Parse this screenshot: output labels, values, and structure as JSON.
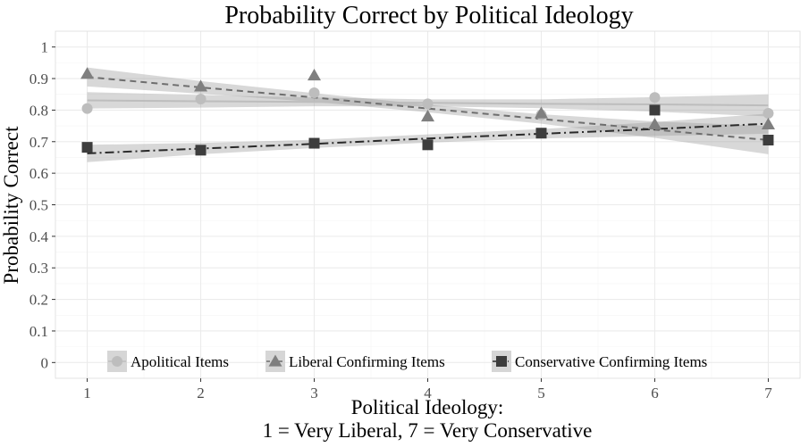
{
  "chart_data": {
    "type": "scatter",
    "title": "Probability Correct by Political Ideology",
    "xlabel_line1": "Political Ideology:",
    "xlabel_line2": "1 = Very Liberal, 7 = Very Conservative",
    "ylabel": "Probability Correct",
    "xlim": [
      0.72,
      7.28
    ],
    "ylim": [
      -0.05,
      1.05
    ],
    "x_ticks": [
      1,
      2,
      3,
      4,
      5,
      6,
      7
    ],
    "y_ticks": [
      0,
      0.1,
      0.2,
      0.3,
      0.4,
      0.5,
      0.6,
      0.7,
      0.8,
      0.9,
      1
    ],
    "y_tick_labels": [
      "0",
      "0.1",
      "0.2",
      "0.3",
      "0.4",
      "0.5",
      "0.6",
      "0.7",
      "0.8",
      "0.9",
      "1"
    ],
    "grid": true,
    "legend_position": "bottom-inside",
    "series": [
      {
        "name": "Apolitical Items",
        "marker": "circle",
        "color": "#bdbdbd",
        "line_color": "#bdbdbd",
        "line_style": "solid",
        "x": [
          1,
          2,
          3,
          4,
          5,
          6,
          7
        ],
        "points": [
          0.805,
          0.835,
          0.855,
          0.82,
          0.785,
          0.84,
          0.79
        ],
        "fit": [
          0.831,
          0.828,
          0.826,
          0.823,
          0.82,
          0.818,
          0.815
        ],
        "ci_lower": [
          0.805,
          0.808,
          0.812,
          0.812,
          0.806,
          0.795,
          0.78
        ],
        "ci_upper": [
          0.857,
          0.848,
          0.84,
          0.834,
          0.834,
          0.841,
          0.85
        ]
      },
      {
        "name": "Liberal Confirming Items",
        "marker": "triangle",
        "color": "#7f7f7f",
        "line_color": "#6e6e6e",
        "line_style": "dashed",
        "x": [
          1,
          2,
          3,
          4,
          5,
          6,
          7
        ],
        "points": [
          0.915,
          0.875,
          0.91,
          0.78,
          0.79,
          0.755,
          0.755
        ],
        "fit": [
          0.905,
          0.872,
          0.84,
          0.805,
          0.772,
          0.738,
          0.705
        ],
        "ci_lower": [
          0.875,
          0.852,
          0.826,
          0.793,
          0.757,
          0.712,
          0.66
        ],
        "ci_upper": [
          0.935,
          0.892,
          0.854,
          0.817,
          0.787,
          0.764,
          0.75
        ]
      },
      {
        "name": "Conservative Confirming Items",
        "marker": "square",
        "color": "#3d3d3d",
        "line_color": "#2a2a2a",
        "line_style": "dashdot",
        "x": [
          1,
          2,
          3,
          4,
          5,
          6,
          7
        ],
        "points": [
          0.682,
          0.673,
          0.695,
          0.69,
          0.727,
          0.8,
          0.705
        ],
        "fit": [
          0.663,
          0.678,
          0.693,
          0.71,
          0.725,
          0.74,
          0.757
        ],
        "ci_lower": [
          0.635,
          0.66,
          0.68,
          0.697,
          0.71,
          0.718,
          0.725
        ],
        "ci_upper": [
          0.69,
          0.696,
          0.706,
          0.723,
          0.74,
          0.762,
          0.789
        ]
      }
    ]
  }
}
